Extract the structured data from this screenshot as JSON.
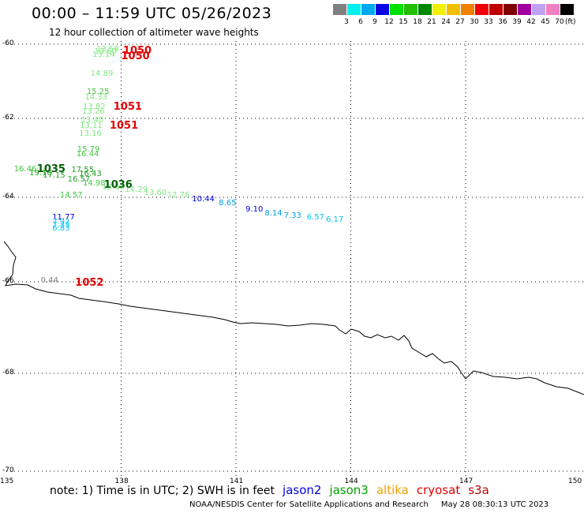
{
  "title": "00:00 – 11:59 UTC 05/26/2023",
  "subtitle": "12 hour collection of altimeter wave heights",
  "legend": {
    "unit": "(ft)",
    "bins": [
      {
        "label": "3",
        "color": "#808080"
      },
      {
        "label": "6",
        "color": "#00f0f0"
      },
      {
        "label": "9",
        "color": "#00a8f0"
      },
      {
        "label": "12",
        "color": "#0000e0"
      },
      {
        "label": "15",
        "color": "#00e000"
      },
      {
        "label": "18",
        "color": "#20c000"
      },
      {
        "label": "21",
        "color": "#008800"
      },
      {
        "label": "24",
        "color": "#f0f000"
      },
      {
        "label": "27",
        "color": "#f0c000"
      },
      {
        "label": "30",
        "color": "#f08000"
      },
      {
        "label": "33",
        "color": "#f00000"
      },
      {
        "label": "36",
        "color": "#c00000"
      },
      {
        "label": "39",
        "color": "#800000"
      },
      {
        "label": "42",
        "color": "#a000a0"
      },
      {
        "label": "45",
        "color": "#c0a0f0"
      },
      {
        "label": "70",
        "color": "#f080c0"
      },
      {
        "label": "",
        "color": "#000000"
      }
    ]
  },
  "axes": {
    "lat_labels": [
      "-60",
      "-62",
      "-64",
      "-66",
      "-68",
      "-70"
    ],
    "lon_labels": [
      "135",
      "138",
      "141",
      "144",
      "147",
      "150"
    ]
  },
  "observations": [
    {
      "v": "13.58",
      "c": "#80e880",
      "lon": 137.35,
      "lat": -60.05
    },
    {
      "v": "13.60",
      "c": "#80e880",
      "lon": 137.3,
      "lat": -60.1
    },
    {
      "v": "13.14",
      "c": "#80e880",
      "lon": 137.25,
      "lat": -60.2
    },
    {
      "v": "14.89",
      "c": "#80e880",
      "lon": 137.2,
      "lat": -60.7
    },
    {
      "v": "15.25",
      "c": "#40c840",
      "lon": 137.1,
      "lat": -61.2
    },
    {
      "v": "14.33",
      "c": "#80e880",
      "lon": 137.05,
      "lat": -61.35
    },
    {
      "v": "13.82",
      "c": "#80e880",
      "lon": 137.0,
      "lat": -61.6
    },
    {
      "v": "13.26",
      "c": "#80e880",
      "lon": 136.98,
      "lat": -61.72
    },
    {
      "v": "13.40",
      "c": "#80e880",
      "lon": 136.95,
      "lat": -61.95
    },
    {
      "v": "13.11",
      "c": "#80e880",
      "lon": 136.92,
      "lat": -62.1
    },
    {
      "v": "13.16",
      "c": "#80e880",
      "lon": 136.9,
      "lat": -62.3
    },
    {
      "v": "15.79",
      "c": "#40c840",
      "lon": 136.85,
      "lat": -62.7
    },
    {
      "v": "16.44",
      "c": "#40c840",
      "lon": 136.83,
      "lat": -62.82
    },
    {
      "v": "16.46",
      "c": "#40c840",
      "lon": 135.2,
      "lat": -63.2
    },
    {
      "v": "19.10",
      "c": "#20a020",
      "lon": 135.6,
      "lat": -63.3
    },
    {
      "v": "17.15",
      "c": "#20a020",
      "lon": 135.95,
      "lat": -63.35
    },
    {
      "v": "17.55",
      "c": "#20a020",
      "lon": 136.7,
      "lat": -63.22
    },
    {
      "v": "16.43",
      "c": "#20a020",
      "lon": 136.9,
      "lat": -63.32
    },
    {
      "v": "16.57",
      "c": "#20a020",
      "lon": 136.6,
      "lat": -63.45
    },
    {
      "v": "14.98",
      "c": "#40c840",
      "lon": 137.0,
      "lat": -63.55
    },
    {
      "v": "13.60",
      "c": "#80e880",
      "lon": 137.5,
      "lat": -63.65
    },
    {
      "v": "14.57",
      "c": "#40c840",
      "lon": 136.4,
      "lat": -63.85
    },
    {
      "v": "14.29",
      "c": "#80e880",
      "lon": 138.1,
      "lat": -63.72
    },
    {
      "v": "13.60",
      "c": "#80e880",
      "lon": 138.6,
      "lat": -63.8
    },
    {
      "v": "12.76",
      "c": "#80e880",
      "lon": 139.2,
      "lat": -63.85
    },
    {
      "v": "10.44",
      "c": "#0000e0",
      "lon": 139.85,
      "lat": -63.95
    },
    {
      "v": "8.65",
      "c": "#00a0e0",
      "lon": 140.55,
      "lat": -64.05
    },
    {
      "v": "9.10",
      "c": "#0000e0",
      "lon": 141.25,
      "lat": -64.2
    },
    {
      "v": "8.14",
      "c": "#00a0e0",
      "lon": 141.75,
      "lat": -64.3
    },
    {
      "v": "7.33",
      "c": "#00a0e0",
      "lon": 142.25,
      "lat": -64.35
    },
    {
      "v": "6.57",
      "c": "#00c8f0",
      "lon": 142.85,
      "lat": -64.4
    },
    {
      "v": "6.17",
      "c": "#00c8f0",
      "lon": 143.35,
      "lat": -64.45
    },
    {
      "v": "11.77",
      "c": "#0000e0",
      "lon": 136.2,
      "lat": -64.4
    },
    {
      "v": "7.92",
      "c": "#00c8f0",
      "lon": 136.2,
      "lat": -64.5
    },
    {
      "v": "7.33",
      "c": "#00c8f0",
      "lon": 136.2,
      "lat": -64.58
    },
    {
      "v": "6.83",
      "c": "#00c8f0",
      "lon": 136.2,
      "lat": -64.65
    },
    {
      "v": "0.44",
      "c": "#808080",
      "lon": 135.9,
      "lat": -65.88
    }
  ],
  "pressures": [
    {
      "v": "1050",
      "c": "#e00000",
      "lon": 138.05,
      "lat": -60.05
    },
    {
      "v": "1050",
      "c": "#e00000",
      "lon": 138.0,
      "lat": -60.2
    },
    {
      "v": "1051",
      "c": "#e00000",
      "lon": 137.8,
      "lat": -61.55
    },
    {
      "v": "1051",
      "c": "#e00000",
      "lon": 137.7,
      "lat": -62.05
    },
    {
      "v": "1035",
      "c": "#006000",
      "lon": 135.8,
      "lat": -63.15
    },
    {
      "v": "1036",
      "c": "#006000",
      "lon": 137.55,
      "lat": -63.55
    },
    {
      "v": "1052",
      "c": "#e00000",
      "lon": 136.8,
      "lat": -65.9
    }
  ],
  "note": {
    "text": "note: 1) Time is in UTC; 2) SWH is in feet",
    "satellites": [
      {
        "name": "jason2",
        "color": "#0000e0"
      },
      {
        "name": "jason3",
        "color": "#00a000"
      },
      {
        "name": "altika",
        "color": "#f0a000"
      },
      {
        "name": "cryosat",
        "color": "#e00000"
      },
      {
        "name": "s3a",
        "color": "#c00000"
      }
    ]
  },
  "credit": {
    "org": "NOAA/NESDIS Center for Satellite Applications and Research",
    "date": "May 28 08:30:13 UTC 2023"
  },
  "map_data": {
    "lon_range": [
      135,
      150
    ],
    "lat_range": [
      -60,
      -70
    ],
    "projection": "polar-stereographic (Southern Ocean, off East Antarctica)"
  }
}
